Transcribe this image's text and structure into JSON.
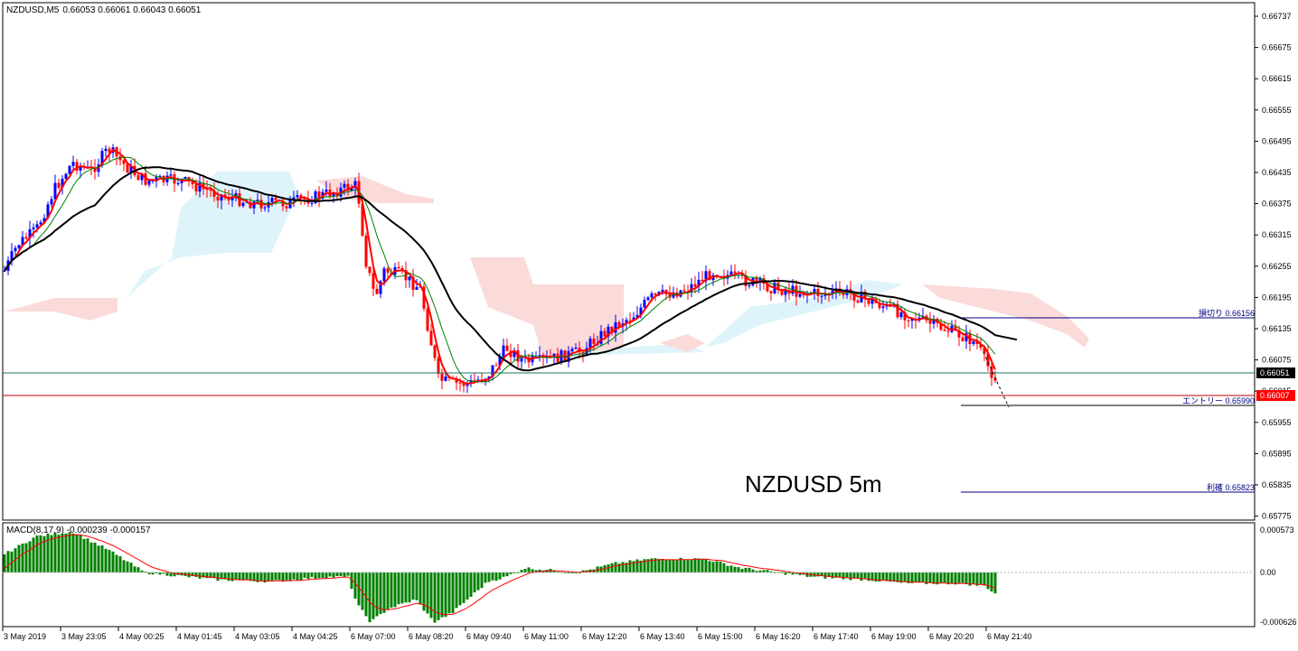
{
  "window": {
    "symbol_header": "NZDUSD,M5",
    "ohlc": "0.66053 0.66061 0.66043 0.66051",
    "watermark": "NZDUSD 5m"
  },
  "price_axis": {
    "labels": [
      "0.66737",
      "0.66675",
      "0.66615",
      "0.66555",
      "0.66495",
      "0.66435",
      "0.66375",
      "0.66315",
      "0.66255",
      "0.66195",
      "0.66135",
      "0.66075",
      "0.66015",
      "0.65955",
      "0.65895",
      "0.65835",
      "0.65775"
    ],
    "current_price": "0.66051",
    "entry_price_label": "0.66007"
  },
  "levels": {
    "stop_loss": "損切り 0.66156",
    "entry": "エントリー 0.65990",
    "take_profit": "利確 0.65823"
  },
  "macd": {
    "header": "MACD(8,17,9) -0.000239 -0.000157",
    "axis_labels": [
      "0.000573",
      "0.00",
      "-0.000626"
    ]
  },
  "time_axis": {
    "labels": [
      "3 May 2019",
      "3 May 23:05",
      "4 May 00:25",
      "4 May 01:45",
      "4 May 03:05",
      "4 May 04:25",
      "6 May 07:00",
      "6 May 08:20",
      "6 May 09:40",
      "6 May 11:00",
      "6 May 12:20",
      "6 May 13:40",
      "6 May 15:00",
      "6 May 16:20",
      "6 May 17:40",
      "6 May 19:00",
      "6 May 20:20",
      "6 May 21:40"
    ]
  },
  "colors": {
    "bull": "#0000ff",
    "bear": "#ff0000",
    "ma_fast": "#ff0000",
    "ma_mid": "#008000",
    "ma_slow": "#000000",
    "kumo_bull": "#dff4fa",
    "kumo_bear": "#fbdada",
    "macd_hist": "#008000",
    "macd_signal": "#ff0000",
    "entry_line": "#c00000",
    "current_line": "#1f6f5f",
    "level_line": "#000080"
  }
}
